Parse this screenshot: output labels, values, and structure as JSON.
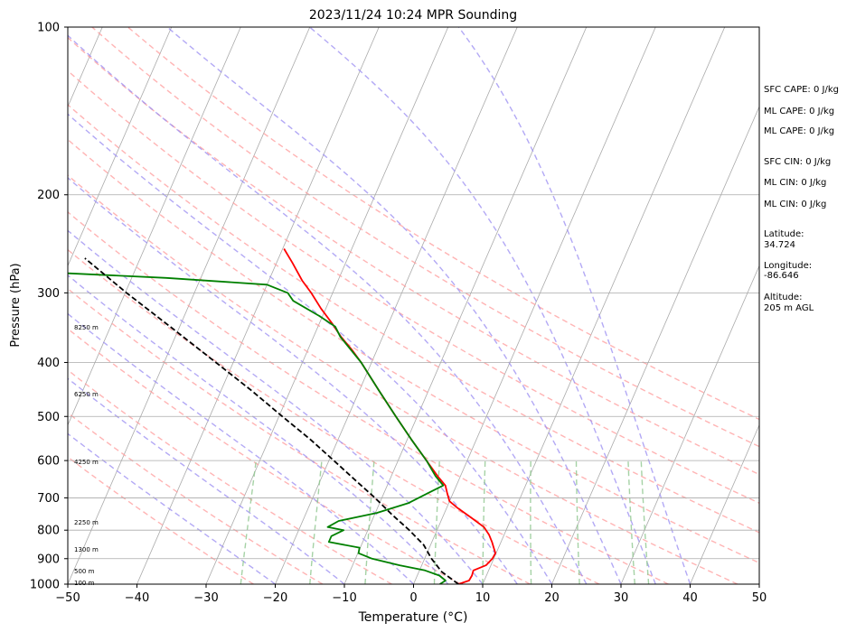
{
  "chart_data": {
    "type": "line",
    "title": "2023/11/24 10:24 MPR Sounding",
    "xlabel": "Temperature (°C)",
    "ylabel": "Pressure (hPa)",
    "xlim": [
      -50,
      50
    ],
    "ylim": [
      1000,
      100
    ],
    "y_scale": "log",
    "grid": true,
    "x_ticks": [
      -50,
      -40,
      -30,
      -20,
      -10,
      0,
      10,
      20,
      30,
      40,
      50
    ],
    "y_ticks": [
      100,
      200,
      300,
      400,
      500,
      600,
      700,
      800,
      900,
      1000
    ],
    "x_tick_labels": [
      "−50",
      "−40",
      "−30",
      "−20",
      "−10",
      "0",
      "10",
      "20",
      "30",
      "40",
      "50"
    ],
    "y_tick_labels": [
      "100",
      "200",
      "300",
      "400",
      "500",
      "600",
      "700",
      "800",
      "900",
      "1000"
    ],
    "series": [
      {
        "role": "temperature",
        "color": "#ff0000",
        "style": "solid",
        "points": [
          [
            1000,
            6.5
          ],
          [
            985,
            7.8
          ],
          [
            965,
            7.9
          ],
          [
            945,
            7.8
          ],
          [
            925,
            9.3
          ],
          [
            900,
            9.8
          ],
          [
            880,
            9.9
          ],
          [
            860,
            9.3
          ],
          [
            840,
            8.7
          ],
          [
            815,
            7.8
          ],
          [
            790,
            6.6
          ],
          [
            760,
            4.2
          ],
          [
            730,
            1.6
          ],
          [
            710,
            0.0
          ],
          [
            685,
            -0.9
          ],
          [
            665,
            -1.6
          ],
          [
            640,
            -3.3
          ],
          [
            600,
            -5.9
          ],
          [
            550,
            -9.4
          ],
          [
            500,
            -13.1
          ],
          [
            450,
            -17.1
          ],
          [
            400,
            -21.5
          ],
          [
            380,
            -23.6
          ],
          [
            360,
            -26.0
          ],
          [
            340,
            -28.2
          ],
          [
            320,
            -30.7
          ],
          [
            300,
            -33.1
          ],
          [
            285,
            -35.2
          ],
          [
            265,
            -37.7
          ],
          [
            250,
            -39.8
          ]
        ]
      },
      {
        "role": "dewpoint",
        "color": "#008000",
        "style": "solid",
        "points": [
          [
            1000,
            3.8
          ],
          [
            985,
            4.4
          ],
          [
            965,
            3.2
          ],
          [
            945,
            0.8
          ],
          [
            925,
            -3.2
          ],
          [
            900,
            -7.6
          ],
          [
            880,
            -9.9
          ],
          [
            860,
            -10.1
          ],
          [
            840,
            -14.9
          ],
          [
            820,
            -14.9
          ],
          [
            800,
            -13.5
          ],
          [
            790,
            -16.0
          ],
          [
            770,
            -14.8
          ],
          [
            745,
            -9.8
          ],
          [
            715,
            -5.8
          ],
          [
            685,
            -3.5
          ],
          [
            665,
            -1.9
          ],
          [
            640,
            -3.6
          ],
          [
            600,
            -5.9
          ],
          [
            550,
            -9.4
          ],
          [
            500,
            -13.1
          ],
          [
            450,
            -17.1
          ],
          [
            400,
            -21.5
          ],
          [
            360,
            -26.1
          ],
          [
            345,
            -27.5
          ],
          [
            330,
            -30.5
          ],
          [
            310,
            -35.2
          ],
          [
            300,
            -36.5
          ],
          [
            290,
            -40.0
          ],
          [
            282,
            -55.0
          ],
          [
            275,
            -74.0
          ]
        ]
      },
      {
        "role": "parcel",
        "color": "#000000",
        "style": "dashed",
        "points": [
          [
            1000,
            6.5
          ],
          [
            950,
            3.3
          ],
          [
            900,
            1.0
          ],
          [
            850,
            -1.0
          ],
          [
            800,
            -4.0
          ],
          [
            750,
            -7.5
          ],
          [
            700,
            -11.0
          ],
          [
            650,
            -15.0
          ],
          [
            600,
            -19.3
          ],
          [
            550,
            -24.0
          ],
          [
            500,
            -29.5
          ],
          [
            450,
            -35.5
          ],
          [
            400,
            -42.5
          ],
          [
            350,
            -50.5
          ],
          [
            300,
            -59.8
          ],
          [
            260,
            -68.0
          ]
        ]
      }
    ],
    "height_labels": [
      {
        "p": 993,
        "text": "100 m"
      },
      {
        "p": 945,
        "text": "500 m"
      },
      {
        "p": 865,
        "text": "1300 m"
      },
      {
        "p": 773,
        "text": "2250 m"
      },
      {
        "p": 602,
        "text": "4250 m"
      },
      {
        "p": 455,
        "text": "6250 m"
      },
      {
        "p": 345,
        "text": "8250 m"
      }
    ],
    "dry_adiabat_thetas_K": [
      250,
      260,
      270,
      280,
      290,
      300,
      310,
      320,
      330,
      340,
      350,
      360,
      370,
      380
    ],
    "moist_adiabat_start_C": [
      -20,
      -10,
      0,
      5,
      10,
      15,
      20,
      25,
      30,
      35,
      40
    ],
    "mixing_ratio_start_C": [
      -25,
      -15,
      -7,
      3,
      10,
      17,
      24,
      32,
      34
    ],
    "colors": {
      "isotherm": "#aaaaaa",
      "dry_adiabat": "#ff9b9b",
      "moist_adiabat": "#9a8cf2",
      "mixing_ratio": "#8fc78f",
      "temperature": "#ff0000",
      "dewpoint": "#008000",
      "parcel": "#000000"
    }
  },
  "annotations": {
    "sfc_cape": "SFC CAPE: 0 J/kg",
    "ml_cape_1": "ML CAPE: 0 J/kg",
    "ml_cape_2": "ML CAPE: 0 J/kg",
    "sfc_cin": "SFC CIN: 0 J/kg",
    "ml_cin_1": "ML CIN: 0 J/kg",
    "ml_cin_2": "ML CIN: 0 J/kg",
    "latitude_label": "Latitude:",
    "latitude_value": "34.724",
    "longitude_label": "Longitude:",
    "longitude_value": "-86.646",
    "altitude_label": "Altitude:",
    "altitude_value": "205 m AGL"
  }
}
